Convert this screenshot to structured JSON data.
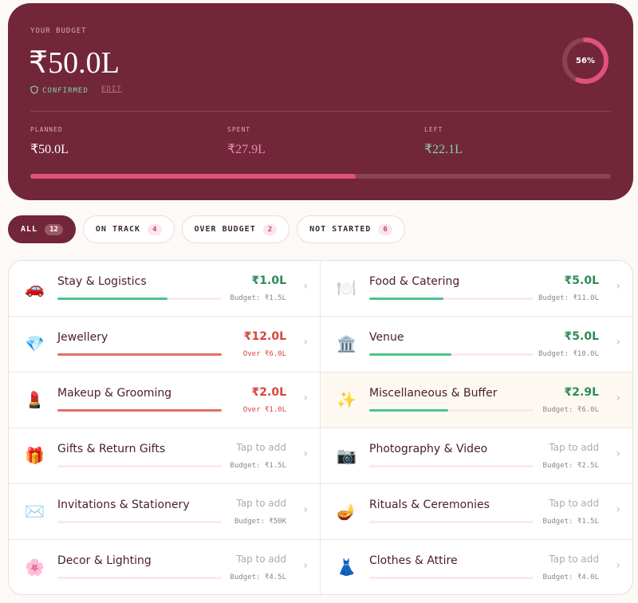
{
  "header": {
    "label": "YOUR BUDGET",
    "amount": "₹50.0L",
    "status": "CONFIRMED",
    "edit": "EDIT",
    "progress": {
      "value": 56,
      "label": "56%"
    },
    "stats": [
      {
        "label": "PLANNED",
        "value": "₹50.0L",
        "color": "#ffffff"
      },
      {
        "label": "SPENT",
        "value": "₹27.9L",
        "color": "#e889b3"
      },
      {
        "label": "LEFT",
        "value": "₹22.1L",
        "color": "#7fd4a6"
      }
    ]
  },
  "filters": [
    {
      "label": "ALL",
      "count": 12,
      "active": true
    },
    {
      "label": "ON TRACK",
      "count": 4,
      "active": false
    },
    {
      "label": "OVER BUDGET",
      "count": 2,
      "active": false
    },
    {
      "label": "NOT STARTED",
      "count": 6,
      "active": false
    }
  ],
  "categories": [
    {
      "icon": "🚗",
      "name": "Stay & Logistics",
      "amount": "₹1.0L",
      "note": "Budget: ₹1.5L",
      "progress": 67,
      "color": "#2e8b57"
    },
    {
      "icon": "🍽️",
      "name": "Food & Catering",
      "amount": "₹5.0L",
      "note": "Budget: ₹11.0L",
      "progress": 45,
      "color": "#2e8b57"
    },
    {
      "icon": "💎",
      "name": "Jewellery",
      "amount": "₹12.0L",
      "note": "Over ₹6.0L",
      "progress": 100,
      "color": "#d9453c"
    },
    {
      "icon": "🏛️",
      "name": "Venue",
      "amount": "₹5.0L",
      "note": "Budget: ₹10.0L",
      "progress": 50,
      "color": "#2e8b57"
    },
    {
      "icon": "💄",
      "name": "Makeup & Grooming",
      "amount": "₹2.0L",
      "note": "Over ₹1.0L",
      "progress": 100,
      "color": "#d9453c"
    },
    {
      "icon": "✨",
      "name": "Miscellaneous & Buffer",
      "amount": "₹2.9L",
      "note": "Budget: ₹6.0L",
      "progress": 48,
      "color": "#2e8b57",
      "highlight": true
    },
    {
      "icon": "🎁",
      "name": "Gifts & Return Gifts",
      "amount": "Tap to add",
      "note": "Budget: ₹1.5L",
      "progress": 0,
      "color": "#b0aaa8"
    },
    {
      "icon": "📷",
      "name": "Photography & Video",
      "amount": "Tap to add",
      "note": "Budget: ₹2.5L",
      "progress": 0,
      "color": "#b0aaa8"
    },
    {
      "icon": "✉️",
      "name": "Invitations & Stationery",
      "amount": "Tap to add",
      "note": "Budget: ₹50K",
      "progress": 0,
      "color": "#b0aaa8"
    },
    {
      "icon": "🪔",
      "name": "Rituals & Ceremonies",
      "amount": "Tap to add",
      "note": "Budget: ₹1.5L",
      "progress": 0,
      "color": "#b0aaa8"
    },
    {
      "icon": "🌸",
      "name": "Decor & Lighting",
      "amount": "Tap to add",
      "note": "Budget: ₹4.5L",
      "progress": 0,
      "color": "#b0aaa8"
    },
    {
      "icon": "👗",
      "name": "Clothes & Attire",
      "amount": "Tap to add",
      "note": "Budget: ₹4.0L",
      "progress": 0,
      "color": "#b0aaa8"
    }
  ]
}
